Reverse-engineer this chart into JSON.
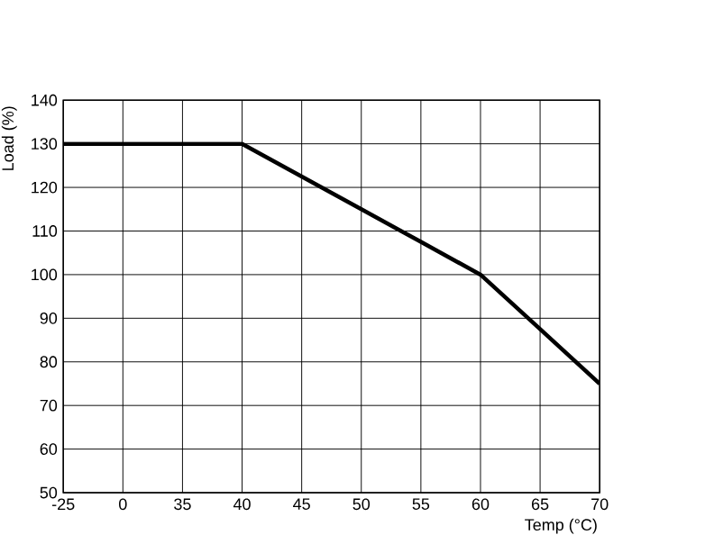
{
  "chart_data": {
    "type": "line",
    "xlabel": "Temp (°C)",
    "ylabel": "Load (%)",
    "categories": [
      "-25",
      "0",
      "35",
      "40",
      "45",
      "50",
      "55",
      "60",
      "65",
      "70"
    ],
    "series": [
      {
        "color": "#000000",
        "values": [
          130,
          130,
          130,
          130,
          122.5,
          115,
          107.5,
          100,
          87.5,
          75
        ]
      }
    ],
    "ylim": [
      50,
      140
    ],
    "yticks": [
      50,
      60,
      70,
      80,
      90,
      100,
      110,
      120,
      130,
      140
    ],
    "grid": true
  }
}
